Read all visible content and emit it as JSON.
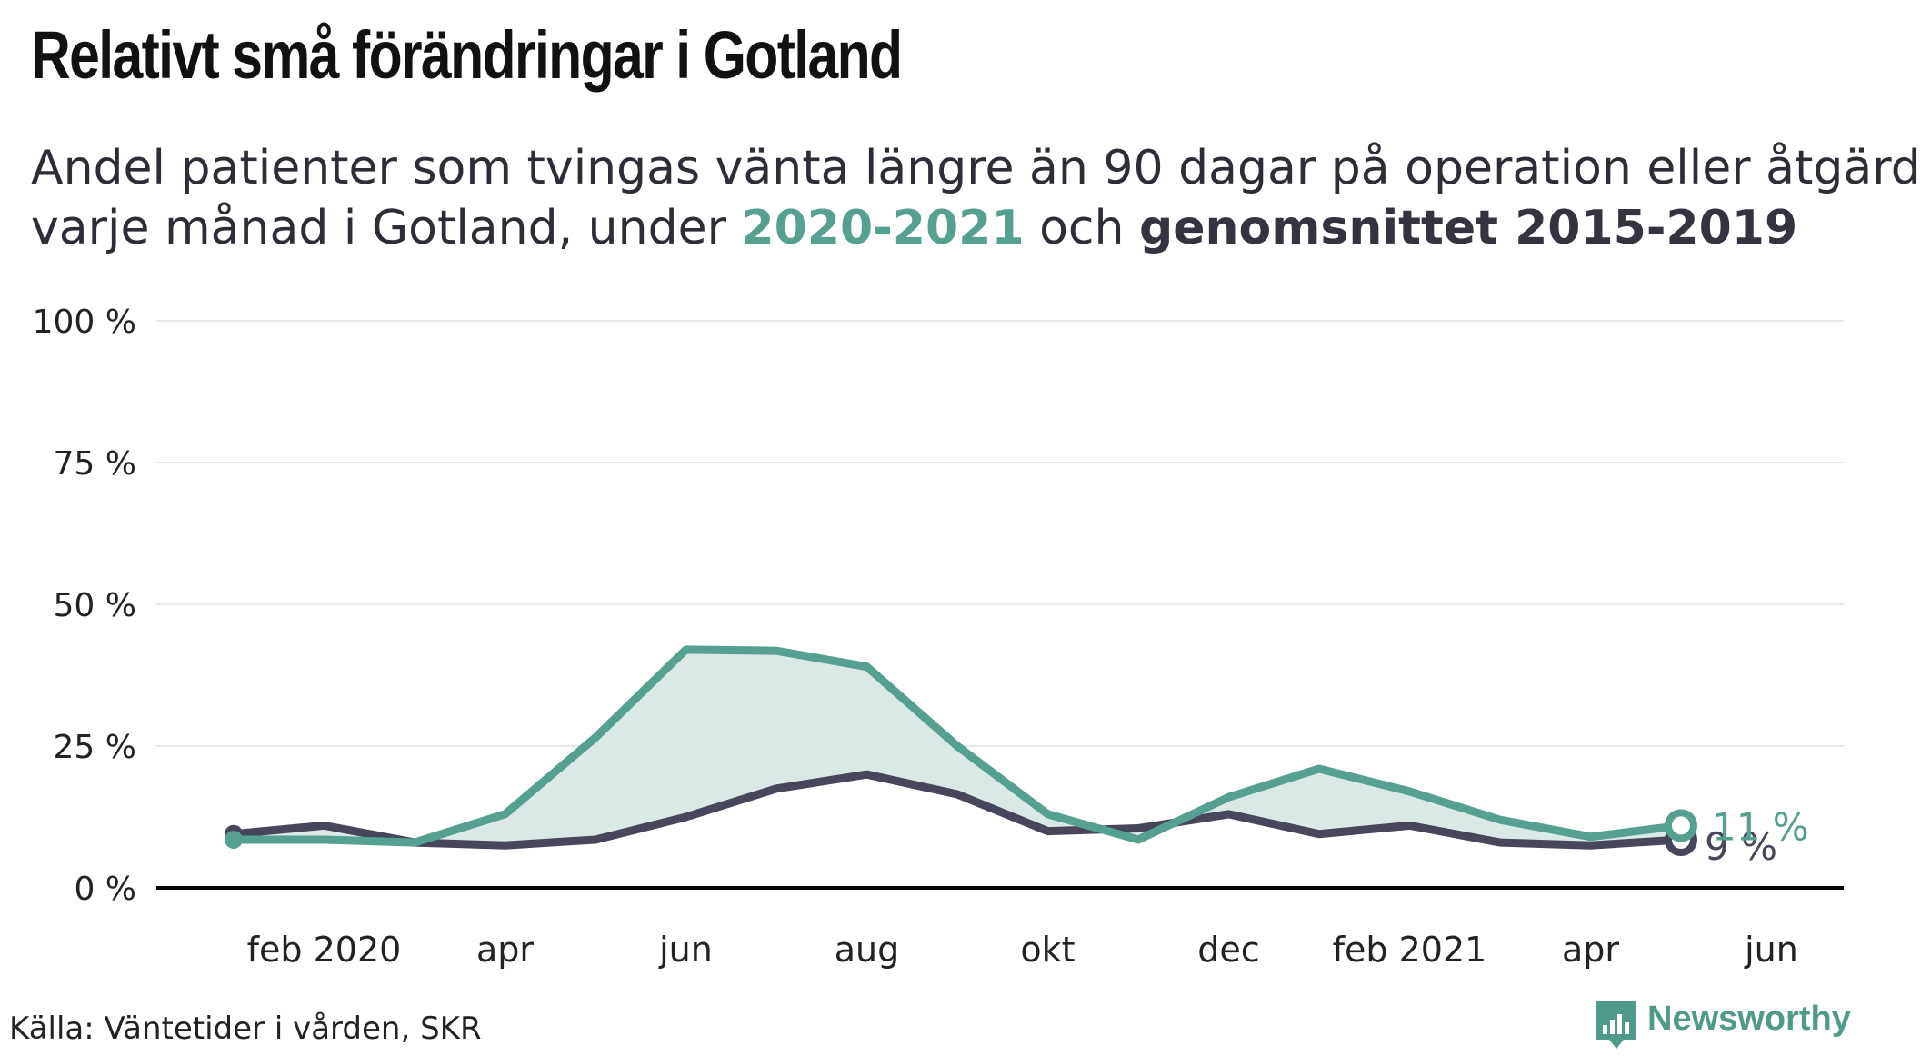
{
  "title": "Relativt små förändringar i Gotland",
  "subtitle": {
    "line1": "Andel patienter som tvingas vänta längre än 90 dagar på operation eller åtgärd",
    "line2_prefix": "varje månad i Gotland, under ",
    "highlight1": "2020-2021",
    "line2_mid": " och ",
    "highlight2": "genomsnittet 2015-2019"
  },
  "source": "Källa: Väntetider i vården, SKR",
  "brand": {
    "name": "Newsworthy",
    "icon": "bar-chart-icon"
  },
  "colors": {
    "series_2020_2021": "#55a091",
    "series_avg": "#47465a",
    "fill": "#dbe9e6",
    "grid": "#e8e8e8",
    "axis": "#000000"
  },
  "chart_data": {
    "type": "line",
    "title": "Relativt små förändringar i Gotland",
    "ylabel": "",
    "xlabel": "",
    "ylim": [
      0,
      100
    ],
    "yticks": [
      0,
      25,
      50,
      75,
      100
    ],
    "ytick_labels": [
      "0 %",
      "25 %",
      "50 %",
      "75 %",
      "100 %"
    ],
    "x": [
      "2020-01",
      "2020-02",
      "2020-03",
      "2020-04",
      "2020-05",
      "2020-06",
      "2020-07",
      "2020-08",
      "2020-09",
      "2020-10",
      "2020-11",
      "2020-12",
      "2021-01",
      "2021-02",
      "2021-03",
      "2021-04",
      "2021-05"
    ],
    "xtick_labels": [
      {
        "x": "2020-02",
        "label": "feb 2020"
      },
      {
        "x": "2020-04",
        "label": "apr"
      },
      {
        "x": "2020-06",
        "label": "jun"
      },
      {
        "x": "2020-08",
        "label": "aug"
      },
      {
        "x": "2020-10",
        "label": "okt"
      },
      {
        "x": "2020-12",
        "label": "dec"
      },
      {
        "x": "2021-02",
        "label": "feb 2021"
      },
      {
        "x": "2021-04",
        "label": "apr"
      },
      {
        "x": "2021-06",
        "label": "jun"
      }
    ],
    "series": [
      {
        "name": "2020-2021",
        "values": [
          8.5,
          8.5,
          8,
          13,
          26.5,
          42,
          41.8,
          39,
          25,
          13,
          8.5,
          16,
          21,
          17,
          12,
          9,
          11
        ],
        "end_label": "11 %"
      },
      {
        "name": "genomsnittet 2015-2019",
        "values": [
          9.5,
          11,
          8,
          7.5,
          8.5,
          12.5,
          17.5,
          20,
          16.5,
          10,
          10.5,
          13,
          9.5,
          11,
          8,
          7.5,
          8.5
        ],
        "end_label": "9 %"
      }
    ],
    "fill_between": true,
    "grid": true
  }
}
